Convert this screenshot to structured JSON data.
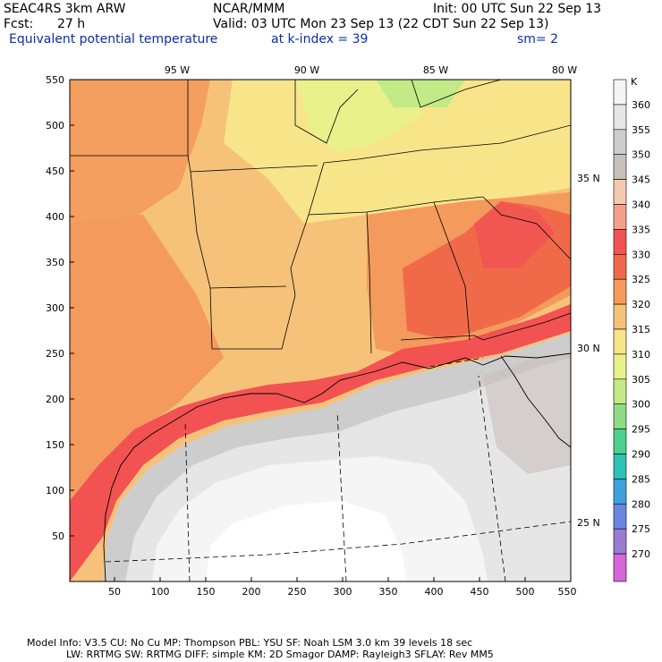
{
  "header": {
    "model": "SEAC4RS  3km ARW",
    "center": "NCAR/MMM",
    "init": "Init: 00 UTC Sun 22 Sep 13",
    "fcst_label": "Fcst:",
    "fcst_value": "27 h",
    "valid": "Valid: 03 UTC Mon 23 Sep 13 (22 CDT Sun 22 Sep 13)",
    "field": "Equivalent potential temperature",
    "level": "at k-index =  39",
    "smoothing": "sm= 2"
  },
  "map": {
    "lon_labels": [
      "95 W",
      "90 W",
      "85 W",
      "80 W"
    ],
    "lat_labels": [
      "35 N",
      "30 N",
      "25 N"
    ],
    "x_ticks": [
      "50",
      "100",
      "150",
      "200",
      "250",
      "300",
      "350",
      "400",
      "450",
      "500",
      "550"
    ],
    "y_ticks": [
      "550",
      "500",
      "450",
      "400",
      "350",
      "300",
      "250",
      "200",
      "150",
      "100",
      "50"
    ]
  },
  "colorbar": {
    "unit": "K",
    "levels": [
      {
        "label": "360",
        "color": "#f5f5f5"
      },
      {
        "label": "355",
        "color": "#e6e6e6"
      },
      {
        "label": "350",
        "color": "#cdcdcd"
      },
      {
        "label": "345",
        "color": "#c8c0bb"
      },
      {
        "label": "340",
        "color": "#f3c9b0"
      },
      {
        "label": "335",
        "color": "#f4a08d"
      },
      {
        "label": "330",
        "color": "#f25252"
      },
      {
        "label": "325",
        "color": "#f06a4a"
      },
      {
        "label": "320",
        "color": "#f49a5c"
      },
      {
        "label": "315",
        "color": "#f6c27a"
      },
      {
        "label": "310",
        "color": "#f8e58a"
      },
      {
        "label": "305",
        "color": "#e9f18a"
      },
      {
        "label": "300",
        "color": "#c2ea86"
      },
      {
        "label": "295",
        "color": "#8edc86"
      },
      {
        "label": "290",
        "color": "#4cd08e"
      },
      {
        "label": "285",
        "color": "#2ec2b4"
      },
      {
        "label": "280",
        "color": "#3fa0dc"
      },
      {
        "label": "275",
        "color": "#6a86e0"
      },
      {
        "label": "270",
        "color": "#9a7ad2"
      }
    ],
    "bottom_color": "#d766d6"
  },
  "footer": {
    "line1": "Model Info: V3.5      CU: No Cu     MP: Thompson      PBL: YSU         SF: Noah LSM      3.0 km   39 levels    18 sec",
    "line2": "LW: RRTMG    SW: RRTMG   DIFF: simple KM: 2D Smagor DAMP: Rayleigh3   SFLAY: Rev MM5"
  }
}
